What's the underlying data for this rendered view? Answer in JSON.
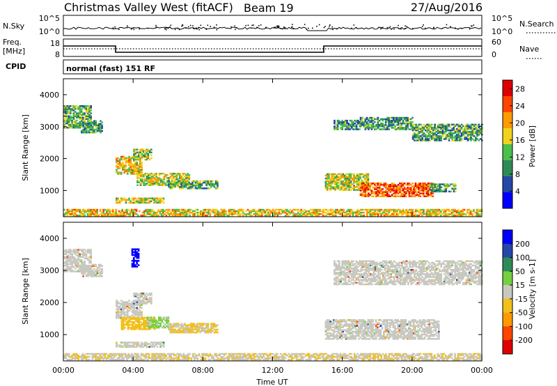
{
  "header": {
    "title": "Christmas Valley West (fitACF)",
    "beam": "Beam 19",
    "date": "27/Aug/2016"
  },
  "top_panels": {
    "nsky_label": "N.Sky",
    "nsky_top_tick": "10^5",
    "nsky_bottom_tick": "10^0",
    "nsearch_label": "N.Search",
    "freq_label": "Freq.",
    "freq_unit": "[MHz]",
    "freq_ticks": [
      "18",
      "8"
    ],
    "nave_label": "Nave",
    "nave_ticks": [
      "60",
      "0"
    ],
    "cpid_label": "CPID",
    "cpid_text": "normal (fast) 151 RF"
  },
  "chart_data": [
    {
      "type": "heatmap",
      "name": "Power",
      "xlabel": "",
      "ylabel": "Slant Range [km]",
      "x_ticks": [
        "00:00",
        "04:00",
        "08:00",
        "12:00",
        "16:00",
        "20:00",
        "00:00"
      ],
      "xlim_hours": [
        0,
        24
      ],
      "ylim_km": [
        180,
        4500
      ],
      "y_ticks": [
        1000,
        2000,
        3000,
        4000
      ],
      "colorbar": {
        "label": "Power [dB]",
        "range": [
          0,
          30
        ],
        "ticks": [
          4,
          8,
          12,
          16,
          20,
          24,
          28
        ],
        "colors": [
          "#0000ff",
          "#2447a8",
          "#2e8b57",
          "#4cbf4c",
          "#f2d21b",
          "#ff9a00",
          "#ff4400",
          "#e00000"
        ]
      },
      "regions": [
        {
          "t": [
            0.0,
            1.6
          ],
          "r": [
            2950,
            3650
          ],
          "level": 12
        },
        {
          "t": [
            1.0,
            2.2
          ],
          "r": [
            2800,
            3200
          ],
          "level": 10
        },
        {
          "t": [
            3.0,
            4.5
          ],
          "r": [
            1500,
            2050
          ],
          "level": 18
        },
        {
          "t": [
            4.0,
            5.0
          ],
          "r": [
            1950,
            2300
          ],
          "level": 14
        },
        {
          "t": [
            4.2,
            7.2
          ],
          "r": [
            1150,
            1550
          ],
          "level": 16
        },
        {
          "t": [
            6.0,
            8.8
          ],
          "r": [
            1050,
            1300
          ],
          "level": 12
        },
        {
          "t": [
            3.0,
            5.7
          ],
          "r": [
            600,
            760
          ],
          "level": 16
        },
        {
          "t": [
            15.0,
            17.5
          ],
          "r": [
            1000,
            1500
          ],
          "level": 16
        },
        {
          "t": [
            17.0,
            21.2
          ],
          "r": [
            800,
            1250
          ],
          "level": 24
        },
        {
          "t": [
            21.0,
            22.5
          ],
          "r": [
            950,
            1200
          ],
          "level": 12
        },
        {
          "t": [
            15.5,
            17.0
          ],
          "r": [
            2900,
            3200
          ],
          "level": 10
        },
        {
          "t": [
            17.0,
            20.0
          ],
          "r": [
            2900,
            3300
          ],
          "level": 10
        },
        {
          "t": [
            20.0,
            24.0
          ],
          "r": [
            2550,
            3050
          ],
          "level": 11
        },
        {
          "t": [
            0.0,
            24.0
          ],
          "r": [
            200,
            400
          ],
          "level": 18
        }
      ]
    },
    {
      "type": "heatmap",
      "name": "Velocity",
      "xlabel": "Time UT",
      "ylabel": "Slant Range [km]",
      "x_ticks": [
        "00:00",
        "04:00",
        "08:00",
        "12:00",
        "16:00",
        "20:00",
        "00:00"
      ],
      "xlim_hours": [
        0,
        24
      ],
      "ylim_km": [
        180,
        4500
      ],
      "y_ticks": [
        1000,
        2000,
        3000,
        4000
      ],
      "colorbar": {
        "label": "Velocity [m s-1]",
        "range": [
          -250,
          250
        ],
        "ticks": [
          200,
          100,
          50,
          15,
          -15,
          -50,
          -100,
          -200
        ],
        "colors": [
          "#e00000",
          "#ff4400",
          "#ff9a00",
          "#f2c01b",
          "#c8c8c0",
          "#74d040",
          "#2e8b57",
          "#2447a8",
          "#0000ff"
        ]
      },
      "regions": [
        {
          "t": [
            0.0,
            1.6
          ],
          "r": [
            2950,
            3650
          ],
          "level": 0
        },
        {
          "t": [
            1.0,
            2.2
          ],
          "r": [
            2800,
            3200
          ],
          "level": 0
        },
        {
          "t": [
            3.0,
            4.5
          ],
          "r": [
            1500,
            2050
          ],
          "level": 0
        },
        {
          "t": [
            4.0,
            5.0
          ],
          "r": [
            1950,
            2300
          ],
          "level": 0
        },
        {
          "t": [
            3.3,
            5.3
          ],
          "r": [
            1150,
            1550
          ],
          "level": -60
        },
        {
          "t": [
            4.8,
            6.0
          ],
          "r": [
            1200,
            1550
          ],
          "level": 40
        },
        {
          "t": [
            6.0,
            8.8
          ],
          "r": [
            1050,
            1350
          ],
          "level": -30
        },
        {
          "t": [
            3.0,
            5.7
          ],
          "r": [
            600,
            760
          ],
          "level": 0
        },
        {
          "t": [
            15.0,
            21.5
          ],
          "r": [
            850,
            1450
          ],
          "level": 0
        },
        {
          "t": [
            15.5,
            24.0
          ],
          "r": [
            2550,
            3300
          ],
          "level": 0
        },
        {
          "t": [
            0.0,
            24.0
          ],
          "r": [
            200,
            400
          ],
          "level": -20
        },
        {
          "t": [
            3.9,
            4.3
          ],
          "r": [
            3100,
            3650
          ],
          "level": 220
        }
      ]
    }
  ]
}
